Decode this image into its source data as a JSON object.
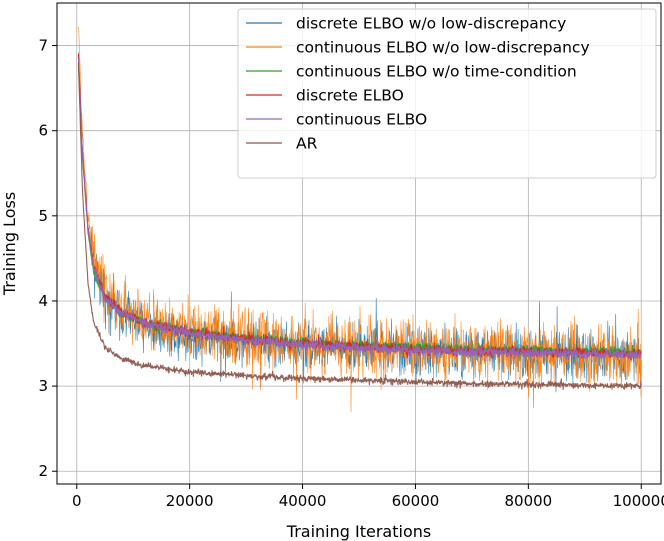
{
  "chart_data": {
    "type": "line",
    "title": "",
    "xlabel": "Training Iterations",
    "ylabel": "Training Loss",
    "xlim": [
      -3500,
      103500
    ],
    "ylim": [
      1.85,
      7.5
    ],
    "xticks": [
      0,
      20000,
      40000,
      60000,
      80000,
      100000
    ],
    "yticks": [
      2,
      3,
      4,
      5,
      6,
      7
    ],
    "grid": true,
    "legend_position": "top-right",
    "series": [
      {
        "name": "discrete ELBO w/o low-discrepancy",
        "color": "#1f77b4",
        "x": [
          300,
          1000,
          2000,
          3000,
          5000,
          8000,
          12000,
          20000,
          30000,
          40000,
          50000,
          60000,
          70000,
          80000,
          90000,
          100000
        ],
        "y": [
          6.9,
          5.8,
          4.85,
          4.4,
          4.05,
          3.85,
          3.72,
          3.6,
          3.52,
          3.48,
          3.45,
          3.42,
          3.4,
          3.38,
          3.37,
          3.36
        ],
        "noise": 0.42
      },
      {
        "name": "continuous ELBO w/o low-discrepancy",
        "color": "#ff7f0e",
        "x": [
          300,
          1000,
          2000,
          3000,
          5000,
          8000,
          12000,
          20000,
          30000,
          40000,
          50000,
          60000,
          70000,
          80000,
          90000,
          100000
        ],
        "y": [
          7.2,
          6.0,
          5.0,
          4.5,
          4.12,
          3.92,
          3.78,
          3.65,
          3.56,
          3.5,
          3.46,
          3.43,
          3.41,
          3.39,
          3.37,
          3.36
        ],
        "noise": 0.5
      },
      {
        "name": "continuous ELBO w/o time-condition",
        "color": "#2ca02c",
        "x": [
          300,
          1000,
          2000,
          3000,
          5000,
          8000,
          12000,
          20000,
          30000,
          40000,
          50000,
          60000,
          70000,
          80000,
          90000,
          100000
        ],
        "y": [
          6.8,
          5.7,
          4.8,
          4.35,
          4.02,
          3.85,
          3.74,
          3.64,
          3.56,
          3.51,
          3.48,
          3.45,
          3.43,
          3.42,
          3.41,
          3.4
        ],
        "noise": 0.08
      },
      {
        "name": "discrete ELBO",
        "color": "#d62728",
        "x": [
          300,
          1000,
          2000,
          3000,
          5000,
          8000,
          12000,
          20000,
          30000,
          40000,
          50000,
          60000,
          70000,
          80000,
          90000,
          100000
        ],
        "y": [
          6.9,
          5.75,
          4.85,
          4.4,
          4.05,
          3.87,
          3.75,
          3.63,
          3.55,
          3.5,
          3.46,
          3.43,
          3.41,
          3.4,
          3.39,
          3.38
        ],
        "noise": 0.08
      },
      {
        "name": "continuous ELBO",
        "color": "#9467bd",
        "x": [
          300,
          1000,
          2000,
          3000,
          5000,
          8000,
          12000,
          20000,
          30000,
          40000,
          50000,
          60000,
          70000,
          80000,
          90000,
          100000
        ],
        "y": [
          6.85,
          5.72,
          4.82,
          4.38,
          4.03,
          3.86,
          3.74,
          3.62,
          3.54,
          3.49,
          3.45,
          3.42,
          3.4,
          3.39,
          3.38,
          3.37
        ],
        "noise": 0.08
      },
      {
        "name": "AR",
        "color": "#8c564b",
        "x": [
          300,
          1000,
          2000,
          3000,
          5000,
          8000,
          12000,
          20000,
          30000,
          40000,
          50000,
          60000,
          70000,
          80000,
          90000,
          100000
        ],
        "y": [
          6.8,
          5.3,
          4.2,
          3.75,
          3.45,
          3.32,
          3.24,
          3.17,
          3.12,
          3.09,
          3.07,
          3.05,
          3.03,
          3.02,
          3.01,
          3.0
        ],
        "noise": 0.05
      }
    ]
  }
}
